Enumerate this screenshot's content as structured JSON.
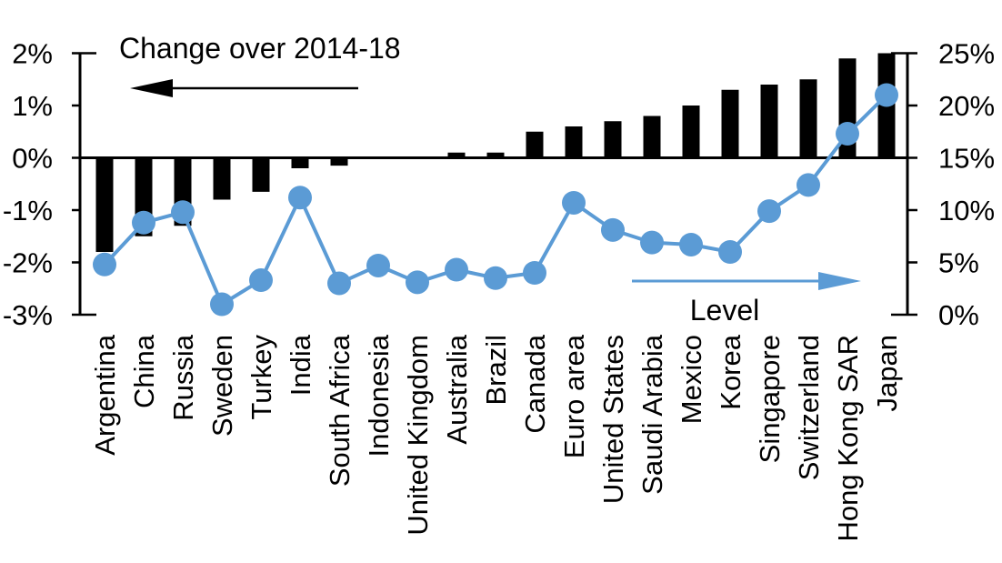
{
  "page": {
    "background_color": "#ffffff",
    "accent_color": "#5b9bd5",
    "bar_color": "#000000"
  },
  "chart_data": {
    "type": "combo bar+line, dual axis",
    "categories": [
      "Argentina",
      "China",
      "Russia",
      "Sweden",
      "Turkey",
      "India",
      "South Africa",
      "Indonesia",
      "United Kingdom",
      "Australia",
      "Brazil",
      "Canada",
      "Euro area",
      "United States",
      "Saudi Arabia",
      "Mexico",
      "Korea",
      "Singapore",
      "Switzerland",
      "Hong Kong SAR",
      "Japan"
    ],
    "series": [
      {
        "name": "Change over 2014-18",
        "chart": "bar",
        "axis": "left",
        "color": "#000000",
        "unit": "%",
        "values": [
          -1.8,
          -1.5,
          -1.3,
          -0.8,
          -0.65,
          -0.2,
          -0.15,
          0,
          0,
          0.1,
          0.1,
          0.5,
          0.6,
          0.7,
          0.8,
          1.0,
          1.3,
          1.4,
          1.5,
          1.9,
          2.0
        ]
      },
      {
        "name": "Level",
        "chart": "line",
        "axis": "right",
        "color": "#5b9bd5",
        "unit": "%",
        "values": [
          4.8,
          8.8,
          9.8,
          1.0,
          3.3,
          11.2,
          3.0,
          4.7,
          3.1,
          4.3,
          3.5,
          4.0,
          10.7,
          8.1,
          6.9,
          6.7,
          6.0,
          9.9,
          12.4,
          17.3,
          21.0
        ]
      }
    ],
    "axes": {
      "left": {
        "labels": [
          "2%",
          "1%",
          "0%",
          "-1%",
          "-2%",
          "-3%"
        ],
        "values": [
          2,
          1,
          0,
          -1,
          -2,
          -3
        ],
        "range": [
          -3,
          2
        ]
      },
      "right": {
        "labels": [
          "25%",
          "20%",
          "15%",
          "10%",
          "5%",
          "0%"
        ],
        "values": [
          25,
          20,
          15,
          10,
          5,
          0
        ],
        "range": [
          0,
          25
        ]
      }
    },
    "annotations": [
      {
        "text": "Change over 2014-18",
        "arrow": "left",
        "color": "#000000"
      },
      {
        "text": "Level",
        "arrow": "right",
        "color": "#5b9bd5"
      }
    ],
    "grid": false,
    "legend_position": "in-plot arrow annotations"
  }
}
